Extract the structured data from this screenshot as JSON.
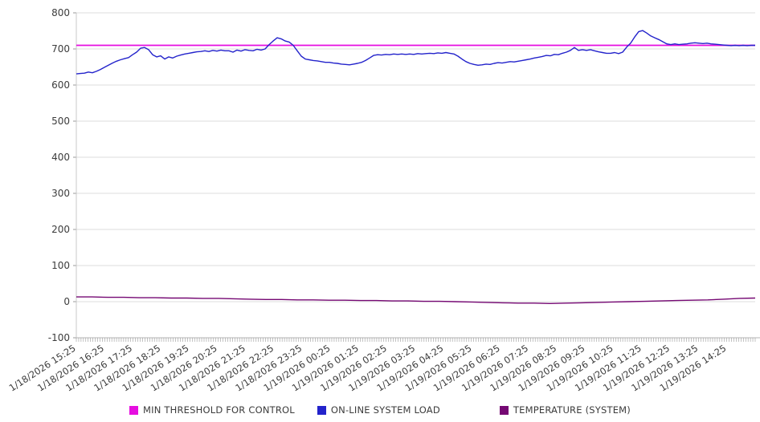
{
  "chart_data": {
    "type": "line",
    "title": "",
    "xlabel": "",
    "ylabel": "",
    "grid": true,
    "legend_position": "bottom",
    "y_axis": {
      "min": -100,
      "max": 800,
      "tick_step": 100
    },
    "x_labels": [
      "1/18/2026 15:25",
      "1/18/2026 16:25",
      "1/18/2026 17:25",
      "1/18/2026 18:25",
      "1/18/2026 19:25",
      "1/18/2026 20:25",
      "1/18/2026 21:25",
      "1/18/2026 22:25",
      "1/18/2026 23:25",
      "1/19/2026 00:25",
      "1/19/2026 01:25",
      "1/19/2026 02:25",
      "1/19/2026 03:25",
      "1/19/2026 04:25",
      "1/19/2026 05:25",
      "1/19/2026 06:25",
      "1/19/2026 07:25",
      "1/19/2026 08:25",
      "1/19/2026 09:25",
      "1/19/2026 10:25",
      "1/19/2026 11:25",
      "1/19/2026 12:25",
      "1/19/2026 13:25",
      "1/19/2026 14:25"
    ],
    "series": [
      {
        "name": "MIN THRESHOLD FOR CONTROL",
        "color": "#E60EE0",
        "kind": "threshold",
        "value": 710
      },
      {
        "name": "ON-LINE SYSTEM LOAD",
        "color": "#2323CB",
        "kind": "line",
        "values": [
          631,
          632,
          633,
          636,
          634,
          638,
          643,
          649,
          655,
          661,
          666,
          670,
          673,
          676,
          684,
          691,
          702,
          704,
          698,
          684,
          678,
          681,
          672,
          678,
          675,
          680,
          683,
          686,
          688,
          690,
          692,
          693,
          695,
          693,
          696,
          694,
          697,
          695,
          695,
          691,
          697,
          694,
          698,
          696,
          695,
          699,
          697,
          700,
          712,
          722,
          731,
          728,
          722,
          719,
          710,
          695,
          680,
          672,
          670,
          668,
          667,
          665,
          663,
          663,
          661,
          660,
          658,
          657,
          656,
          658,
          660,
          663,
          668,
          675,
          682,
          684,
          683,
          685,
          684,
          686,
          685,
          686,
          685,
          686,
          685,
          687,
          686,
          687,
          688,
          687,
          689,
          688,
          690,
          688,
          686,
          680,
          672,
          665,
          660,
          657,
          655,
          656,
          658,
          657,
          660,
          662,
          661,
          663,
          665,
          664,
          666,
          668,
          670,
          672,
          675,
          677,
          679,
          682,
          681,
          685,
          684,
          688,
          691,
          696,
          704,
          696,
          698,
          696,
          698,
          695,
          692,
          690,
          688,
          688,
          690,
          687,
          691,
          705,
          716,
          733,
          748,
          751,
          744,
          736,
          731,
          726,
          720,
          714,
          712,
          714,
          712,
          713,
          714,
          716,
          717,
          716,
          715,
          716,
          714,
          713,
          712,
          711,
          710,
          709,
          710,
          709,
          710,
          709,
          710,
          710
        ]
      },
      {
        "name": "TEMPERATURE (SYSTEM)",
        "color": "#750873",
        "kind": "line",
        "values": [
          13,
          13,
          12,
          12,
          11,
          11,
          10,
          10,
          9,
          9,
          8,
          7,
          6,
          6,
          5,
          5,
          4,
          4,
          3,
          3,
          2,
          2,
          1,
          1,
          0,
          -1,
          -2,
          -3,
          -4,
          -4,
          -5,
          -4,
          -3,
          -2,
          -1,
          0,
          1,
          2,
          3,
          4,
          5,
          7,
          9,
          10
        ]
      }
    ]
  }
}
